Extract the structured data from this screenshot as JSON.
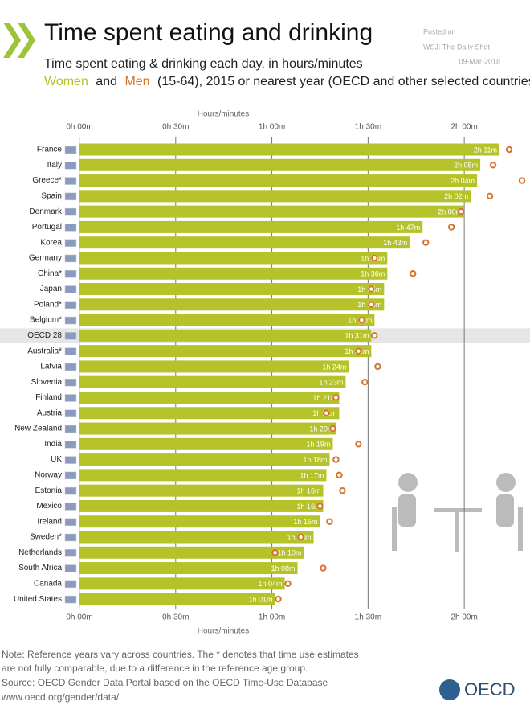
{
  "chart_data": {
    "type": "bar",
    "title": "Time spent eating and drinking",
    "subtitle": "Time spent eating & drinking each day, in hours/minutes",
    "subtitle_connector": "and",
    "subtitle_rest": "(15-64), 2015 or nearest year (OECD and other selected countries",
    "posted": [
      "Posted on",
      "WSJ: The Daily Shot",
      "09-Mar-2018"
    ],
    "x_label": "Hours/minutes",
    "categories": [
      "France",
      "Italy",
      "Greece*",
      "Spain",
      "Denmark",
      "Portugal",
      "Korea",
      "Germany",
      "China*",
      "Japan",
      "Poland*",
      "Belgium*",
      "OECD 28",
      "Australia*",
      "Latvia",
      "Slovenia",
      "Finland",
      "Austria",
      "New Zealand",
      "India",
      "UK",
      "Norway",
      "Estonia",
      "Mexico",
      "Ireland",
      "Sweden*",
      "Netherlands",
      "South Africa",
      "Canada",
      "United States"
    ],
    "highlight_index": 12,
    "series": [
      {
        "name": "Women",
        "color": "#b5c22a",
        "values": [
          131,
          125,
          124,
          122,
          120,
          107,
          103,
          96,
          96,
          95,
          95,
          92,
          91,
          91,
          84,
          83,
          81,
          81,
          80,
          79,
          78,
          77,
          76,
          76,
          75,
          73,
          70,
          68,
          64,
          61
        ],
        "value_labels": [
          "2h 11m",
          "2h 05m",
          "2h 04m",
          "2h 02m",
          "2h 00m",
          "1h 47m",
          "1h 43m",
          "1h 36m",
          "1h 36m",
          "1h 35m",
          "1h 35m",
          "1h 32m",
          "1h 31m",
          "1h 31m",
          "1h 24m",
          "1h 23m",
          "1h 21m",
          "1h 21m",
          "1h 20m",
          "1h 19m",
          "1h 18m",
          "1h 17m",
          "1h 16m",
          "1h 16m",
          "1h 15m",
          "1h 13m",
          "1h 10m",
          "1h 08m",
          "1h 04m",
          "1h 01m"
        ]
      },
      {
        "name": "Men",
        "color": "#d6742e",
        "values": [
          134,
          129,
          138,
          128,
          119,
          116,
          108,
          92,
          104,
          91,
          91,
          88,
          92,
          87,
          93,
          89,
          80,
          77,
          79,
          87,
          80,
          81,
          82,
          75,
          78,
          69,
          61,
          76,
          65,
          62
        ]
      }
    ],
    "xlim": [
      0,
      140
    ],
    "xticks": [
      {
        "value": 0,
        "label": "0h 00m"
      },
      {
        "value": 30,
        "label": "0h 30m"
      },
      {
        "value": 60,
        "label": "1h 00m"
      },
      {
        "value": 90,
        "label": "1h 30m"
      },
      {
        "value": 120,
        "label": "2h 00m"
      }
    ],
    "grid": true,
    "notes": [
      "Note: Reference years vary across countries. The * denotes that time use estimates",
      "are not fully comparable, due to a difference in the reference age group.",
      "Source: OECD Gender Data Portal based on the OECD Time-Use Database",
      "www.oecd.org/gender/data/"
    ],
    "logo": "OECD"
  }
}
